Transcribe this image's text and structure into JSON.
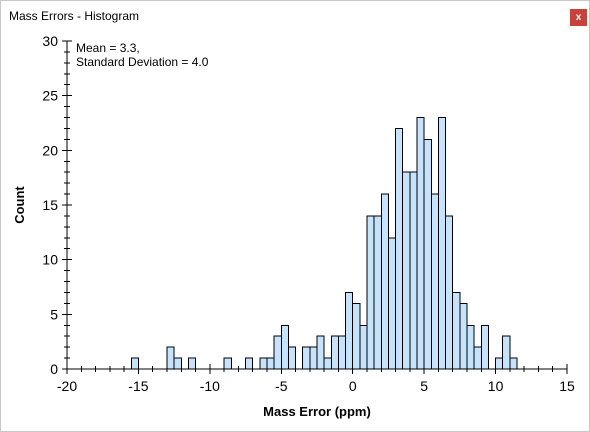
{
  "window": {
    "title": "Mass Errors - Histogram",
    "close_label": "x"
  },
  "chart_data": {
    "type": "bar",
    "title": "",
    "xlabel": "Mass Error (ppm)",
    "ylabel": "Count",
    "annotation": [
      "Mean = 3.3,",
      "Standard Deviation = 4.0"
    ],
    "xlim": [
      -20,
      15
    ],
    "ylim": [
      0,
      30
    ],
    "x_ticks": [
      -20,
      -15,
      -10,
      -5,
      0,
      5,
      10,
      15
    ],
    "y_ticks": [
      0,
      5,
      10,
      15,
      20,
      25,
      30
    ],
    "bin_width": 0.5,
    "bar_color": "#c5e3fb",
    "bar_edge_color": "#000000",
    "bins": [
      {
        "x": -15.5,
        "count": 1
      },
      {
        "x": -13.0,
        "count": 2
      },
      {
        "x": -12.5,
        "count": 1
      },
      {
        "x": -11.5,
        "count": 1
      },
      {
        "x": -9.0,
        "count": 1
      },
      {
        "x": -7.5,
        "count": 1
      },
      {
        "x": -6.5,
        "count": 1
      },
      {
        "x": -6.0,
        "count": 1
      },
      {
        "x": -5.5,
        "count": 3
      },
      {
        "x": -5.0,
        "count": 4
      },
      {
        "x": -4.5,
        "count": 2
      },
      {
        "x": -3.5,
        "count": 2
      },
      {
        "x": -3.0,
        "count": 2
      },
      {
        "x": -2.5,
        "count": 3
      },
      {
        "x": -2.0,
        "count": 1
      },
      {
        "x": -1.5,
        "count": 3
      },
      {
        "x": -1.0,
        "count": 3
      },
      {
        "x": -0.5,
        "count": 7
      },
      {
        "x": 0.0,
        "count": 6
      },
      {
        "x": 0.5,
        "count": 4
      },
      {
        "x": 1.0,
        "count": 14
      },
      {
        "x": 1.5,
        "count": 14
      },
      {
        "x": 2.0,
        "count": 16
      },
      {
        "x": 2.5,
        "count": 12
      },
      {
        "x": 3.0,
        "count": 22
      },
      {
        "x": 3.5,
        "count": 18
      },
      {
        "x": 4.0,
        "count": 18
      },
      {
        "x": 4.5,
        "count": 23
      },
      {
        "x": 5.0,
        "count": 21
      },
      {
        "x": 5.5,
        "count": 16
      },
      {
        "x": 6.0,
        "count": 23
      },
      {
        "x": 6.5,
        "count": 14
      },
      {
        "x": 7.0,
        "count": 7
      },
      {
        "x": 7.5,
        "count": 6
      },
      {
        "x": 8.0,
        "count": 4
      },
      {
        "x": 8.5,
        "count": 2
      },
      {
        "x": 9.0,
        "count": 4
      },
      {
        "x": 10.0,
        "count": 1
      },
      {
        "x": 10.5,
        "count": 3
      },
      {
        "x": 11.0,
        "count": 1
      }
    ]
  }
}
